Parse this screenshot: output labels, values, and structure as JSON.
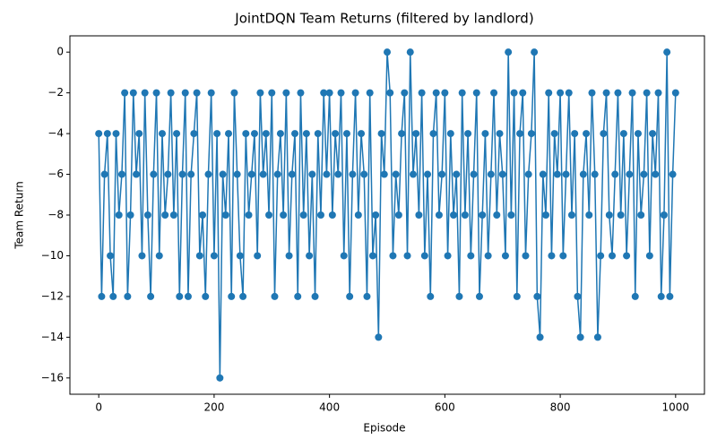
{
  "chart_data": {
    "type": "line",
    "title": "JointDQN Team Returns (filtered by landlord)",
    "x_label": "Episode",
    "y_label": "Team Return",
    "x": [
      0,
      5,
      10,
      15,
      20,
      25,
      30,
      35,
      40,
      45,
      50,
      55,
      60,
      65,
      70,
      75,
      80,
      85,
      90,
      95,
      100,
      105,
      110,
      115,
      120,
      125,
      130,
      135,
      140,
      145,
      150,
      155,
      160,
      165,
      170,
      175,
      180,
      185,
      190,
      195,
      200,
      205,
      210,
      215,
      220,
      225,
      230,
      235,
      240,
      245,
      250,
      255,
      260,
      265,
      270,
      275,
      280,
      285,
      290,
      295,
      300,
      305,
      310,
      315,
      320,
      325,
      330,
      335,
      340,
      345,
      350,
      355,
      360,
      365,
      370,
      375,
      380,
      385,
      390,
      395,
      400,
      405,
      410,
      415,
      420,
      425,
      430,
      435,
      440,
      445,
      450,
      455,
      460,
      465,
      470,
      475,
      480,
      485,
      490,
      495,
      500,
      505,
      510,
      515,
      520,
      525,
      530,
      535,
      540,
      545,
      550,
      555,
      560,
      565,
      570,
      575,
      580,
      585,
      590,
      595,
      600,
      605,
      610,
      615,
      620,
      625,
      630,
      635,
      640,
      645,
      650,
      655,
      660,
      665,
      670,
      675,
      680,
      685,
      690,
      695,
      700,
      705,
      710,
      715,
      720,
      725,
      730,
      735,
      740,
      745,
      750,
      755,
      760,
      765,
      770,
      775,
      780,
      785,
      790,
      795,
      800,
      805,
      810,
      815,
      820,
      825,
      830,
      835,
      840,
      845,
      850,
      855,
      860,
      865,
      870,
      875,
      880,
      885,
      890,
      895,
      900,
      905,
      910,
      915,
      920,
      925,
      930,
      935,
      940,
      945,
      950,
      955,
      960,
      965,
      970,
      975,
      980,
      985,
      990,
      995,
      1000
    ],
    "series": [
      {
        "name": "Team Return",
        "color": "#1f77b4",
        "values": [
          -4,
          -12,
          -6,
          -4,
          -10,
          -12,
          -4,
          -8,
          -6,
          -2,
          -12,
          -8,
          -2,
          -6,
          -4,
          -10,
          -2,
          -8,
          -12,
          -6,
          -2,
          -10,
          -4,
          -8,
          -6,
          -2,
          -8,
          -4,
          -12,
          -6,
          -2,
          -12,
          -6,
          -4,
          -2,
          -10,
          -8,
          -12,
          -6,
          -2,
          -10,
          -4,
          -16,
          -6,
          -8,
          -4,
          -12,
          -2,
          -6,
          -10,
          -12,
          -4,
          -8,
          -6,
          -4,
          -10,
          -2,
          -6,
          -4,
          -8,
          -2,
          -12,
          -6,
          -4,
          -8,
          -2,
          -10,
          -6,
          -4,
          -12,
          -2,
          -8,
          -4,
          -10,
          -6,
          -12,
          -4,
          -8,
          -2,
          -6,
          -2,
          -8,
          -4,
          -6,
          -2,
          -10,
          -4,
          -12,
          -6,
          -2,
          -8,
          -4,
          -6,
          -12,
          -2,
          -10,
          -8,
          -14,
          -4,
          -6,
          0,
          -2,
          -10,
          -6,
          -8,
          -4,
          -2,
          -10,
          0,
          -6,
          -4,
          -8,
          -2,
          -10,
          -6,
          -12,
          -4,
          -2,
          -8,
          -6,
          -2,
          -10,
          -4,
          -8,
          -6,
          -12,
          -2,
          -8,
          -4,
          -10,
          -6,
          -2,
          -12,
          -8,
          -4,
          -10,
          -6,
          -2,
          -8,
          -4,
          -6,
          -10,
          0,
          -8,
          -2,
          -12,
          -4,
          -2,
          -10,
          -6,
          -4,
          0,
          -12,
          -14,
          -6,
          -8,
          -2,
          -10,
          -4,
          -6,
          -2,
          -10,
          -6,
          -2,
          -8,
          -4,
          -12,
          -14,
          -6,
          -4,
          -8,
          -2,
          -6,
          -14,
          -10,
          -4,
          -2,
          -8,
          -10,
          -6,
          -2,
          -8,
          -4,
          -10,
          -6,
          -2,
          -12,
          -4,
          -8,
          -6,
          -2,
          -10,
          -4,
          -6,
          -2,
          -12,
          -8,
          0,
          -12,
          -6,
          -2
        ]
      }
    ],
    "xlim": [
      -50,
      1050
    ],
    "ylim": [
      -16.8,
      0.8
    ],
    "xticks": [
      0,
      200,
      400,
      600,
      800,
      1000
    ],
    "yticks": [
      0,
      {
        "value": -2,
        "label": "−2"
      },
      {
        "value": -4,
        "label": "−4"
      },
      {
        "value": -6,
        "label": "−6"
      },
      {
        "value": -8,
        "label": "−8"
      },
      {
        "value": -10,
        "label": "−10"
      },
      {
        "value": -12,
        "label": "−12"
      },
      {
        "value": -14,
        "label": "−14"
      },
      {
        "value": -16,
        "label": "−16"
      }
    ],
    "grid": false
  }
}
